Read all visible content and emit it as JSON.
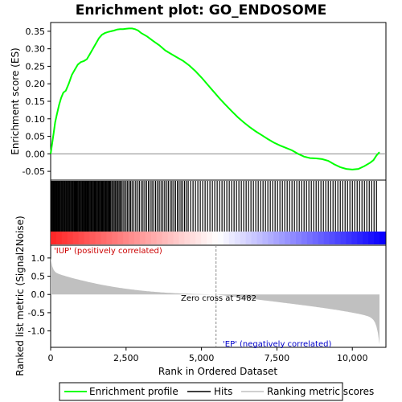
{
  "chart_data": {
    "type": "line",
    "title": "Enrichment plot: GO_ENDOSOME",
    "xlabel": "Rank in Ordered Dataset",
    "ylabel_top": "Enrichment score (ES)",
    "ylabel_bottom": "Ranked list metric (Signal2Noise)",
    "xlim": [
      0,
      10900
    ],
    "x_ticks": [
      0,
      2500,
      5000,
      7500,
      10000
    ],
    "x_tick_labels": [
      "0",
      "2,500",
      "5,000",
      "7,500",
      "10,000"
    ],
    "es_ylim": [
      -0.075,
      0.375
    ],
    "es_ticks": [
      -0.05,
      0.0,
      0.05,
      0.1,
      0.15,
      0.2,
      0.25,
      0.3,
      0.35
    ],
    "es_tick_labels": [
      "-0.05",
      "0.00",
      "0.05",
      "0.10",
      "0.15",
      "0.20",
      "0.25",
      "0.30",
      "0.35"
    ],
    "metric_ylim": [
      -1.45,
      1.35
    ],
    "metric_ticks": [
      -1.0,
      -0.5,
      0.0,
      0.5,
      1.0
    ],
    "metric_tick_labels": [
      "-1.0",
      "-0.5",
      "0.0",
      "0.5",
      "1.0"
    ],
    "enrichment_profile": {
      "x": [
        0,
        50,
        100,
        150,
        200,
        280,
        350,
        420,
        500,
        600,
        700,
        800,
        900,
        1000,
        1100,
        1200,
        1300,
        1400,
        1500,
        1600,
        1700,
        1800,
        1900,
        2000,
        2100,
        2200,
        2300,
        2400,
        2500,
        2600,
        2700,
        2800,
        2900,
        3000,
        3200,
        3400,
        3600,
        3800,
        4000,
        4200,
        4400,
        4600,
        4800,
        5000,
        5200,
        5400,
        5482,
        5600,
        5800,
        6000,
        6200,
        6400,
        6600,
        6800,
        7000,
        7200,
        7400,
        7600,
        7800,
        8000,
        8200,
        8400,
        8600,
        8800,
        9000,
        9200,
        9400,
        9600,
        9800,
        10000,
        10200,
        10400,
        10600,
        10700,
        10800,
        10850,
        10900
      ],
      "y": [
        0.0,
        0.03,
        0.06,
        0.09,
        0.11,
        0.14,
        0.16,
        0.175,
        0.18,
        0.2,
        0.225,
        0.24,
        0.255,
        0.262,
        0.265,
        0.27,
        0.285,
        0.3,
        0.315,
        0.33,
        0.34,
        0.345,
        0.348,
        0.35,
        0.352,
        0.355,
        0.356,
        0.356,
        0.357,
        0.358,
        0.358,
        0.356,
        0.352,
        0.345,
        0.335,
        0.322,
        0.31,
        0.295,
        0.285,
        0.275,
        0.265,
        0.252,
        0.236,
        0.218,
        0.198,
        0.178,
        0.17,
        0.158,
        0.14,
        0.122,
        0.105,
        0.09,
        0.076,
        0.064,
        0.053,
        0.042,
        0.032,
        0.024,
        0.017,
        0.01,
        0.0,
        -0.008,
        -0.012,
        -0.013,
        -0.015,
        -0.02,
        -0.03,
        -0.038,
        -0.043,
        -0.045,
        -0.043,
        -0.035,
        -0.025,
        -0.018,
        -0.005,
        0.0,
        0.005
      ]
    },
    "hits_ranks": [
      10,
      40,
      70,
      95,
      120,
      150,
      175,
      200,
      230,
      255,
      280,
      310,
      340,
      365,
      390,
      420,
      445,
      470,
      500,
      525,
      550,
      580,
      605,
      630,
      660,
      690,
      715,
      740,
      770,
      800,
      825,
      850,
      880,
      910,
      940,
      965,
      990,
      1020,
      1050,
      1075,
      1100,
      1130,
      1160,
      1190,
      1215,
      1240,
      1270,
      1300,
      1330,
      1360,
      1390,
      1420,
      1450,
      1480,
      1510,
      1540,
      1570,
      1600,
      1630,
      1660,
      1690,
      1720,
      1750,
      1780,
      1810,
      1840,
      1870,
      1900,
      1930,
      1960,
      1990,
      2030,
      2070,
      2110,
      2150,
      2190,
      2230,
      2270,
      2310,
      2350,
      2400,
      2450,
      2500,
      2550,
      2600,
      2650,
      2700,
      2760,
      2820,
      2880,
      2940,
      3000,
      3060,
      3120,
      3180,
      3240,
      3300,
      3360,
      3420,
      3480,
      3540,
      3600,
      3660,
      3720,
      3780,
      3840,
      3900,
      3960,
      4020,
      4080,
      4140,
      4200,
      4260,
      4320,
      4380,
      4440,
      4500,
      4560,
      4640,
      4720,
      4800,
      4880,
      4960,
      5040,
      5120,
      5200,
      5280,
      5360,
      5440,
      5520,
      5600,
      5680,
      5760,
      5840,
      5920,
      6000,
      6080,
      6160,
      6240,
      6320,
      6400,
      6480,
      6560,
      6640,
      6720,
      6800,
      6880,
      6960,
      7040,
      7120,
      7200,
      7280,
      7360,
      7440,
      7520,
      7600,
      7680,
      7760,
      7840,
      7920,
      8000,
      8080,
      8160,
      8240,
      8320,
      8400,
      8480,
      8560,
      8640,
      8720,
      8800,
      8880,
      8960,
      9040,
      9120,
      9200,
      9280,
      9360,
      9440,
      9520,
      9600,
      9680,
      9760,
      9840,
      9920,
      10000,
      10080,
      10160,
      10240,
      10320,
      10400,
      10480,
      10560,
      10640,
      10720,
      10800
    ],
    "zero_cross_rank": 5482,
    "annotations": {
      "positive": "'IUP' (positively correlated)",
      "negative": "'EP' (negatively correlated)",
      "zero_cross": "Zero cross at 5482"
    },
    "legend": {
      "position": "bottom",
      "entries": [
        "Enrichment profile",
        "Hits",
        "Ranking metric scores"
      ]
    },
    "colors": {
      "profile": "#00ff00",
      "hits": "#000000",
      "metric_fill": "#c0c0c0",
      "positive_text": "#cc0000",
      "negative_text": "#0000cc",
      "heat_pos": "#ff0000",
      "heat_neg": "#0000ff"
    }
  }
}
